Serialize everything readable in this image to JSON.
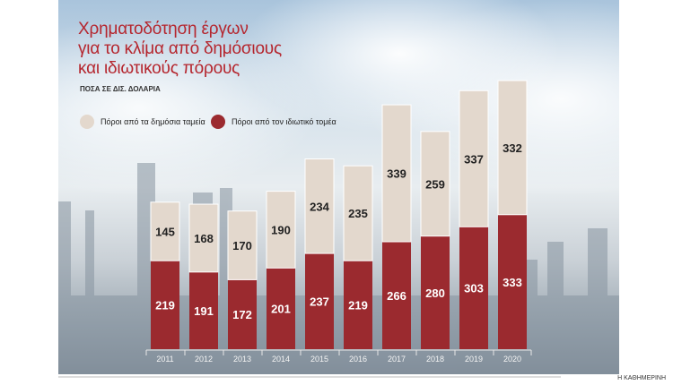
{
  "header": {
    "title_lines": [
      "Χρηματοδότηση έργων",
      "για το κλίμα από δημόσιους",
      "και ιδιωτικούς πόρους"
    ],
    "subtitle": "ΠΟΣΑ ΣΕ ΔΙΣ. ΔΟΛΑΡΙΑ"
  },
  "credit": "Η ΚΑΘΗΜΕΡΙΝΗ",
  "chart_data": {
    "type": "bar",
    "stacked": true,
    "title": "Χρηματοδότηση έργων για το κλίμα από δημόσιους και ιδιωτικούς πόρους",
    "ylabel": "ΠΟΣΑ ΣΕ ΔΙΣ. ΔΟΛΑΡΙΑ",
    "categories": [
      "2011",
      "2012",
      "2013",
      "2014",
      "2015",
      "2016",
      "2017",
      "2018",
      "2019",
      "2020"
    ],
    "series": [
      {
        "name": "Πόροι από τον ιδιωτικό τομέα",
        "color": "#9b2a2f",
        "values": [
          219,
          191,
          172,
          201,
          237,
          219,
          266,
          280,
          303,
          333
        ]
      },
      {
        "name": "Πόροι από τα δημόσια ταμεία",
        "color": "#e3d8cd",
        "values": [
          145,
          168,
          170,
          190,
          234,
          235,
          339,
          259,
          337,
          332
        ]
      }
    ],
    "legend": [
      "Πόροι από τα δημόσια ταμεία",
      "Πόροι από τον ιδιωτικό τομέα"
    ],
    "legend_position": "top-left",
    "ylim": [
      0,
      665
    ],
    "grid": false
  }
}
